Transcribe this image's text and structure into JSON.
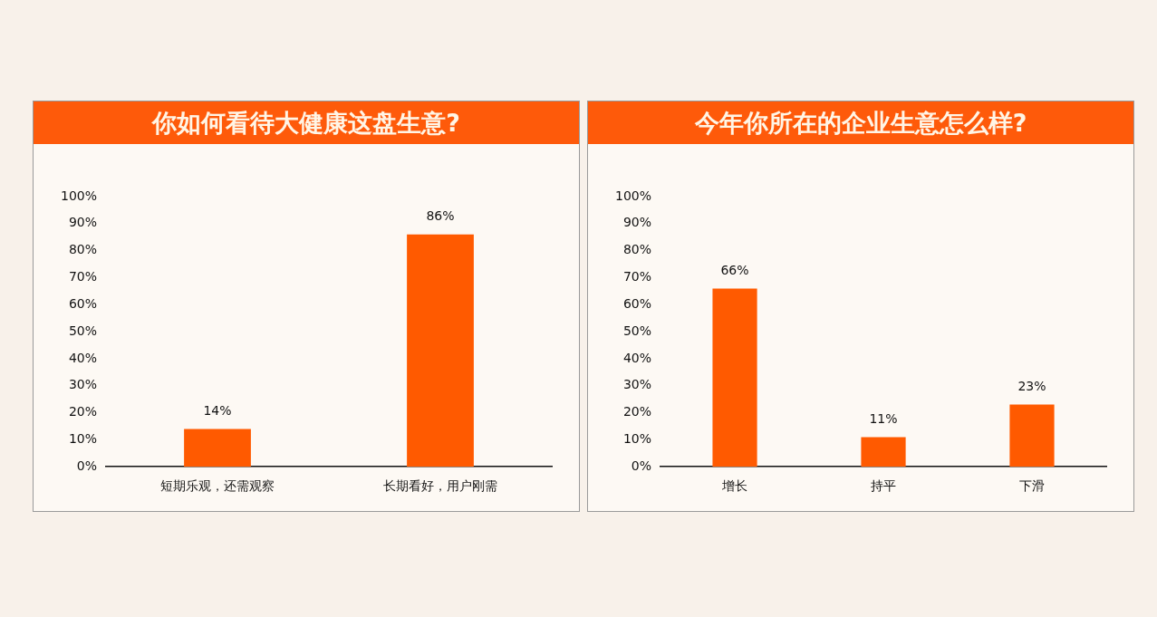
{
  "chart_data": [
    {
      "type": "bar",
      "title": "你如何看待大健康这盘生意?",
      "categories": [
        "短期乐观，还需观察",
        "长期看好，用户刚需"
      ],
      "values": [
        14,
        86
      ],
      "value_labels": [
        "14%",
        "86%"
      ],
      "color": "#ff5a00",
      "ylim": [
        0,
        100
      ],
      "yticks": [
        {
          "value": 0,
          "label": "0%"
        },
        {
          "value": 10,
          "label": "10%"
        },
        {
          "value": 20,
          "label": "20%"
        },
        {
          "value": 30,
          "label": "30%"
        },
        {
          "value": 40,
          "label": "40%"
        },
        {
          "value": 50,
          "label": "50%"
        },
        {
          "value": 60,
          "label": "60%"
        },
        {
          "value": 70,
          "label": "70%"
        },
        {
          "value": 80,
          "label": "80%"
        },
        {
          "value": 90,
          "label": "90%"
        },
        {
          "value": 100,
          "label": "100%"
        }
      ],
      "grid": false,
      "legend": false
    },
    {
      "type": "bar",
      "title": "今年你所在的企业生意怎么样?",
      "categories": [
        "增长",
        "持平",
        "下滑"
      ],
      "values": [
        66,
        11,
        23
      ],
      "value_labels": [
        "66%",
        "11%",
        "23%"
      ],
      "color": "#ff5a00",
      "ylim": [
        0,
        100
      ],
      "yticks": [
        {
          "value": 0,
          "label": "0%"
        },
        {
          "value": 10,
          "label": "10%"
        },
        {
          "value": 20,
          "label": "20%"
        },
        {
          "value": 30,
          "label": "30%"
        },
        {
          "value": 40,
          "label": "40%"
        },
        {
          "value": 50,
          "label": "50%"
        },
        {
          "value": 60,
          "label": "60%"
        },
        {
          "value": 70,
          "label": "70%"
        },
        {
          "value": 80,
          "label": "80%"
        },
        {
          "value": 90,
          "label": "90%"
        },
        {
          "value": 100,
          "label": "100%"
        }
      ],
      "grid": false,
      "legend": false
    }
  ]
}
